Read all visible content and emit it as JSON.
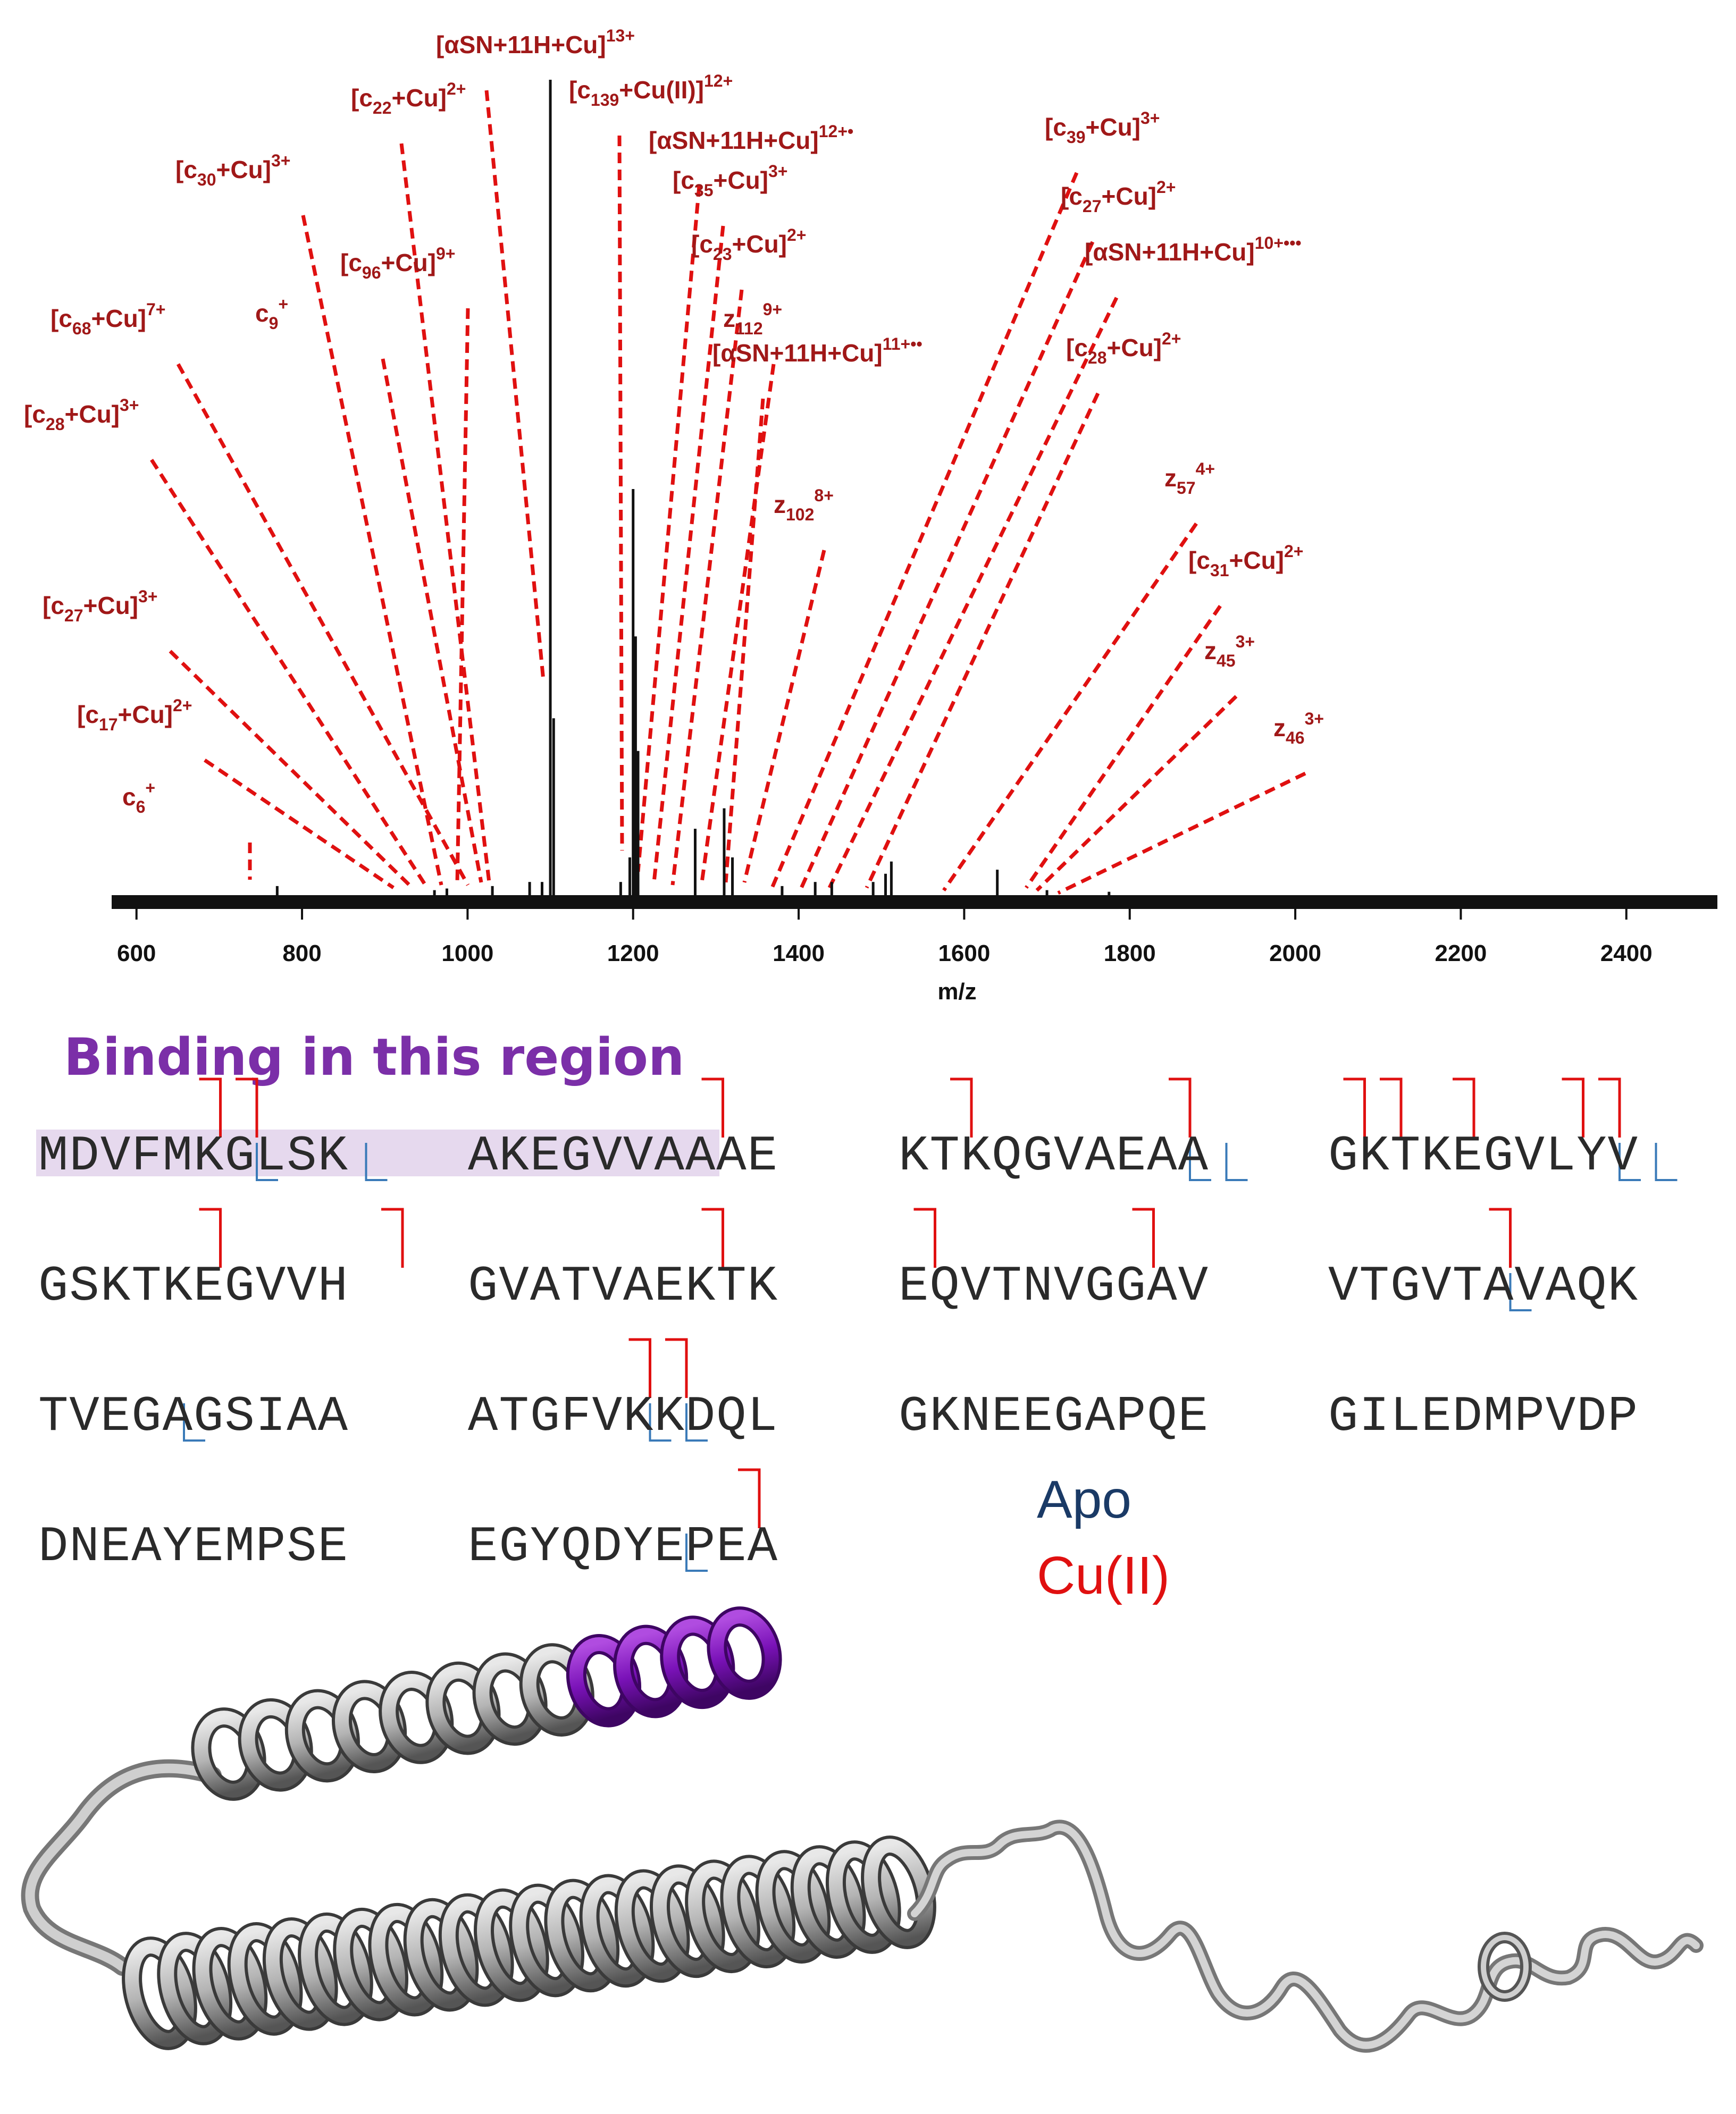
{
  "chart_data": {
    "type": "line",
    "xlabel": "m/z",
    "xlim": [
      570,
      2510
    ],
    "xticks": [
      600,
      800,
      1000,
      1200,
      1400,
      1600,
      1800,
      2000,
      2200,
      2400
    ],
    "peaks": [
      {
        "x": 770,
        "y": 0.015
      },
      {
        "x": 960,
        "y": 0.01
      },
      {
        "x": 975,
        "y": 0.012
      },
      {
        "x": 1030,
        "y": 0.015
      },
      {
        "x": 1075,
        "y": 0.02
      },
      {
        "x": 1090,
        "y": 0.02
      },
      {
        "x": 1100,
        "y": 1.0
      },
      {
        "x": 1104,
        "y": 0.22
      },
      {
        "x": 1185,
        "y": 0.02
      },
      {
        "x": 1196,
        "y": 0.05
      },
      {
        "x": 1200,
        "y": 0.5
      },
      {
        "x": 1203,
        "y": 0.32
      },
      {
        "x": 1206,
        "y": 0.18
      },
      {
        "x": 1275,
        "y": 0.085
      },
      {
        "x": 1310,
        "y": 0.11
      },
      {
        "x": 1320,
        "y": 0.05
      },
      {
        "x": 1380,
        "y": 0.015
      },
      {
        "x": 1420,
        "y": 0.02
      },
      {
        "x": 1440,
        "y": 0.02
      },
      {
        "x": 1490,
        "y": 0.02
      },
      {
        "x": 1505,
        "y": 0.03
      },
      {
        "x": 1512,
        "y": 0.045
      },
      {
        "x": 1640,
        "y": 0.035
      },
      {
        "x": 1700,
        "y": 0.01
      },
      {
        "x": 1775,
        "y": 0.008
      }
    ],
    "annotations": [
      {
        "label": "[αSN+11H+Cu]",
        "sup": "13+",
        "x": 1100
      },
      {
        "label": "[c",
        "sub": "22",
        "mid": "+Cu]",
        "sup": "2+",
        "x": 1050
      },
      {
        "label": "[c",
        "sub": "139",
        "mid": "+Cu(II)]",
        "sup": "12+",
        "x": 1195
      },
      {
        "label": "[αSN+11H+Cu]",
        "sup": "12+•",
        "x": 1208
      },
      {
        "label": "[c",
        "sub": "35",
        "mid": "+Cu]",
        "sup": "3+",
        "x": 1225
      },
      {
        "label": "[c",
        "sub": "23",
        "mid": "+Cu]",
        "sup": "2+",
        "x": 1265
      },
      {
        "label": "z",
        "sub": "112",
        "sup": "9+",
        "x": 1295
      },
      {
        "label": "[αSN+11H+Cu]",
        "sup": "11+••",
        "x": 1310
      },
      {
        "label": "z",
        "sub": "102",
        "sup": "8+",
        "x": 1375
      },
      {
        "label": "[c",
        "sub": "30",
        "mid": "+Cu]",
        "sup": "3+",
        "x": 1000
      },
      {
        "label": "[c",
        "sub": "96",
        "mid": "+Cu]",
        "sup": "9+",
        "x": 1035
      },
      {
        "label": "c",
        "sub": "9",
        "sup": "+",
        "x": 990
      },
      {
        "label": "[c",
        "sub": "68",
        "mid": "+Cu]",
        "sup": "7+",
        "x": 975
      },
      {
        "label": "[c",
        "sub": "28",
        "mid": "+Cu]",
        "sup": "3+",
        "x": 950
      },
      {
        "label": "[c",
        "sub": "27",
        "mid": "+Cu]",
        "sup": "3+",
        "x": 930
      },
      {
        "label": "[c",
        "sub": "17",
        "mid": "+Cu]",
        "sup": "2+",
        "x": 900
      },
      {
        "label": "c",
        "sub": "6",
        "sup": "+",
        "x": 760
      },
      {
        "label": "[c",
        "sub": "39",
        "mid": "+Cu]",
        "sup": "3+",
        "x": 1420
      },
      {
        "label": "[c",
        "sub": "27",
        "mid": "+Cu]",
        "sup": "2+",
        "x": 1440
      },
      {
        "label": "[αSN+11H+Cu]",
        "sup": "10+•••",
        "x": 1490
      },
      {
        "label": "[c",
        "sub": "28",
        "mid": "+Cu]",
        "sup": "2+",
        "x": 1505
      },
      {
        "label": "z",
        "sub": "57",
        "sup": "4+",
        "x": 1590
      },
      {
        "label": "[c",
        "sub": "31",
        "mid": "+Cu]",
        "sup": "2+",
        "x": 1680
      },
      {
        "label": "z",
        "sub": "45",
        "sup": "3+",
        "x": 1700
      },
      {
        "label": "z",
        "sub": "46",
        "sup": "3+",
        "x": 1725
      }
    ]
  },
  "binding_title": "Binding in this region",
  "sequence": [
    [
      "MDVFMKGLSK",
      "AKEGVVAAAE",
      "KTKQGVAEAA",
      "GKTKEGVLYV"
    ],
    [
      "GSKTKEGVVH",
      "GVATVAEKTK",
      "EQVTNVGGAV",
      "VTGVTAVAQK"
    ],
    [
      "TVEGAGSIAA",
      "ATGFVKKDQL",
      "GKNEEGAPQE",
      "GILEDMPVDP"
    ],
    [
      "DNEAYEMPSE",
      "EGYQDYEPEA"
    ]
  ],
  "cleavage_cu": [
    [
      0,
      1,
      6
    ],
    [
      1,
      0,
      4
    ],
    [
      1,
      0,
      5
    ],
    [
      1,
      1,
      6
    ],
    [
      1,
      2,
      1
    ],
    [
      1,
      2,
      7
    ],
    [
      1,
      3,
      0
    ],
    [
      1,
      3,
      1
    ],
    [
      1,
      3,
      3
    ],
    [
      1,
      3,
      6
    ],
    [
      1,
      3,
      7
    ],
    [
      2,
      0,
      4
    ],
    [
      2,
      0,
      9
    ],
    [
      2,
      1,
      6
    ],
    [
      2,
      2,
      0
    ],
    [
      2,
      2,
      6
    ],
    [
      2,
      3,
      4
    ],
    [
      3,
      1,
      4
    ],
    [
      3,
      1,
      5
    ],
    [
      4,
      1,
      7
    ]
  ],
  "cleavage_apo": [
    [
      0,
      0,
      5
    ],
    [
      0,
      0,
      8
    ],
    [
      1,
      2,
      7
    ],
    [
      1,
      2,
      8
    ],
    [
      1,
      3,
      7
    ],
    [
      1,
      3,
      8
    ],
    [
      2,
      3,
      4
    ],
    [
      3,
      0,
      3
    ],
    [
      3,
      1,
      4
    ],
    [
      3,
      1,
      5
    ],
    [
      4,
      1,
      5
    ]
  ],
  "legend": {
    "apo": "Apo",
    "cu": "Cu(II)",
    "apo_color": "#1a3a66",
    "cu_color": "#e01010"
  },
  "colors": {
    "annotation": "#a01818",
    "leader": "#e01010",
    "spectrum": "#111111",
    "highlight": "#e6d9ee",
    "helix_highlight": "#7a12b8",
    "helix": "#9a9a9a"
  }
}
